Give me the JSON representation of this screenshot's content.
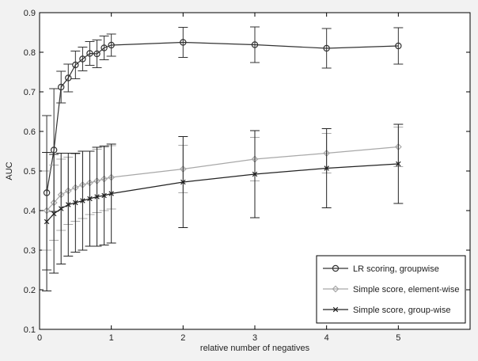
{
  "chart_data": {
    "type": "line",
    "xlabel": "relative number of negatives",
    "ylabel": "AUC",
    "xlim": [
      0,
      6
    ],
    "ylim": [
      0.1,
      0.9
    ],
    "x_ticks": [
      0,
      1,
      2,
      3,
      4,
      5
    ],
    "y_ticks": [
      0.1,
      0.2,
      0.3,
      0.4,
      0.5,
      0.6,
      0.7,
      0.8,
      0.9
    ],
    "x_tick_labels": [
      "0",
      "1",
      "2",
      "3",
      "4",
      "5"
    ],
    "y_tick_labels": [
      "0.1",
      "0.2",
      "0.3",
      "0.4",
      "0.5",
      "0.6",
      "0.7",
      "0.8",
      "0.9"
    ],
    "grid": false,
    "legend_position": "bottom-right",
    "series": [
      {
        "name": "LR scoring, groupwise",
        "color": "#333333",
        "marker": "circle",
        "x": [
          0.1,
          0.2,
          0.3,
          0.4,
          0.5,
          0.6,
          0.7,
          0.8,
          0.9,
          1,
          2,
          3,
          4,
          5
        ],
        "y": [
          0.445,
          0.553,
          0.712,
          0.735,
          0.768,
          0.783,
          0.797,
          0.796,
          0.811,
          0.818,
          0.825,
          0.819,
          0.81,
          0.816
        ],
        "err": [
          0.195,
          0.155,
          0.04,
          0.035,
          0.035,
          0.03,
          0.03,
          0.035,
          0.03,
          0.028,
          0.038,
          0.045,
          0.05,
          0.046
        ]
      },
      {
        "name": "Simple score, element-wise",
        "color": "#a8a8a8",
        "marker": "diamond",
        "x": [
          0.1,
          0.2,
          0.3,
          0.4,
          0.5,
          0.6,
          0.7,
          0.8,
          0.9,
          1,
          2,
          3,
          4,
          5
        ],
        "y": [
          0.4,
          0.42,
          0.44,
          0.45,
          0.458,
          0.465,
          0.47,
          0.475,
          0.48,
          0.484,
          0.505,
          0.53,
          0.545,
          0.561
        ],
        "err": [
          0.1,
          0.095,
          0.09,
          0.085,
          0.085,
          0.085,
          0.08,
          0.08,
          0.08,
          0.08,
          0.06,
          0.055,
          0.05,
          0.05
        ]
      },
      {
        "name": "Simple score, group-wise",
        "color": "#222222",
        "marker": "x",
        "x": [
          0.1,
          0.2,
          0.3,
          0.4,
          0.5,
          0.6,
          0.7,
          0.8,
          0.9,
          1,
          2,
          3,
          4,
          5
        ],
        "y": [
          0.372,
          0.392,
          0.405,
          0.415,
          0.42,
          0.425,
          0.43,
          0.435,
          0.438,
          0.443,
          0.472,
          0.492,
          0.507,
          0.518
        ],
        "err": [
          0.175,
          0.15,
          0.14,
          0.13,
          0.125,
          0.125,
          0.12,
          0.125,
          0.125,
          0.125,
          0.115,
          0.11,
          0.1,
          0.1
        ]
      }
    ]
  }
}
